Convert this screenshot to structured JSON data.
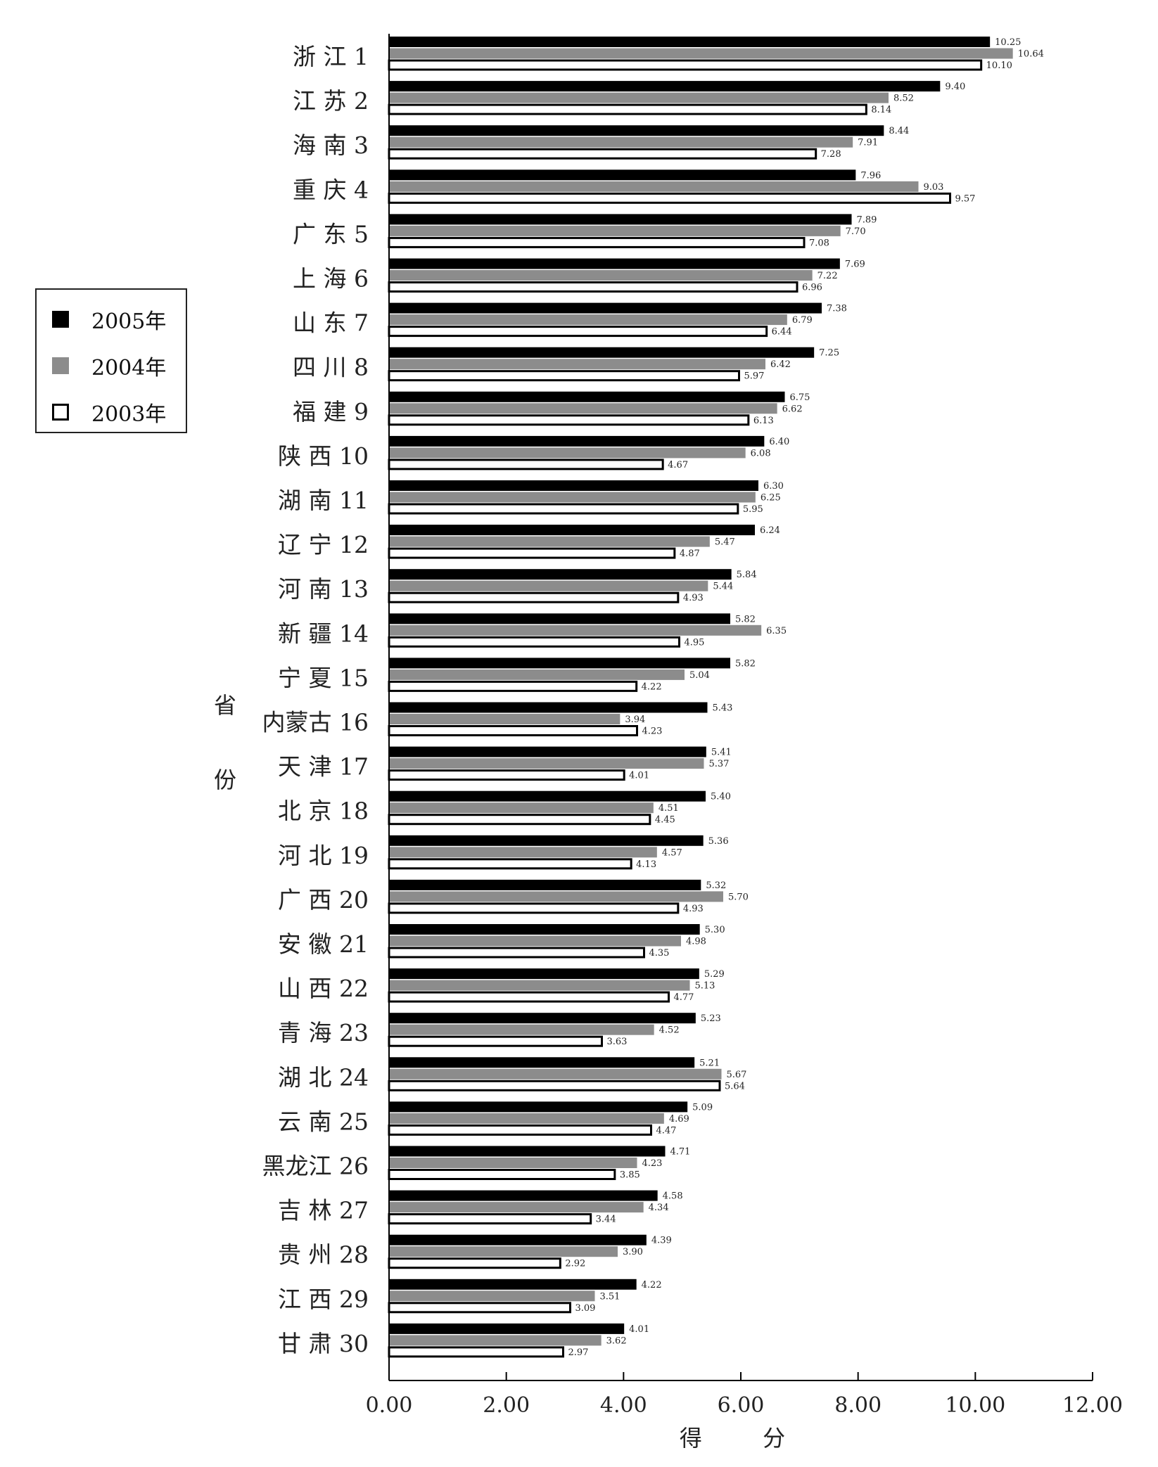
{
  "chart_data": {
    "type": "bar",
    "orientation": "horizontal",
    "title": "",
    "xlabel": "得 分",
    "ylabel": "省份",
    "xlim": [
      0,
      12
    ],
    "xticks": [
      "0.00",
      "2.00",
      "4.00",
      "6.00",
      "8.00",
      "10.00",
      "12.00"
    ],
    "legend_position": "left",
    "grid": false,
    "categories": [
      "浙 江 1",
      "江 苏 2",
      "海 南 3",
      "重 庆 4",
      "广 东 5",
      "上 海 6",
      "山 东 7",
      "四 川 8",
      "福 建 9",
      "陕 西 10",
      "湖 南 11",
      "辽 宁 12",
      "河 南 13",
      "新 疆 14",
      "宁 夏 15",
      "内蒙古 16",
      "天 津 17",
      "北 京 18",
      "河 北 19",
      "广 西 20",
      "安 徽 21",
      "山 西 22",
      "青 海 23",
      "湖 北 24",
      "云 南 25",
      "黑龙江 26",
      "吉 林 27",
      "贵 州 28",
      "江 西 29",
      "甘 肃 30"
    ],
    "series": [
      {
        "name": "2005年",
        "color": "#000000",
        "values": [
          10.25,
          9.4,
          8.44,
          7.96,
          7.89,
          7.69,
          7.38,
          7.25,
          6.75,
          6.4,
          6.3,
          6.24,
          5.84,
          5.82,
          5.82,
          5.43,
          5.41,
          5.4,
          5.36,
          5.32,
          5.3,
          5.29,
          5.23,
          5.21,
          5.09,
          4.71,
          4.58,
          4.39,
          4.22,
          4.01
        ]
      },
      {
        "name": "2004年",
        "color": "#8c8c8c",
        "values": [
          10.64,
          8.52,
          7.91,
          9.03,
          7.7,
          7.22,
          6.79,
          6.42,
          6.62,
          6.08,
          6.25,
          5.47,
          5.44,
          6.35,
          5.04,
          3.94,
          5.37,
          4.51,
          4.57,
          5.7,
          4.98,
          5.13,
          4.52,
          5.67,
          4.69,
          4.23,
          4.34,
          3.9,
          3.51,
          3.62
        ]
      },
      {
        "name": "2003年",
        "color": "#ffffff",
        "values": [
          10.1,
          8.14,
          7.28,
          9.57,
          7.08,
          6.96,
          6.44,
          5.97,
          6.13,
          4.67,
          5.95,
          4.87,
          4.93,
          4.95,
          4.22,
          4.23,
          4.01,
          4.45,
          4.13,
          4.93,
          4.35,
          4.77,
          3.63,
          5.64,
          4.47,
          3.85,
          3.44,
          2.92,
          3.09,
          2.97
        ]
      }
    ]
  }
}
